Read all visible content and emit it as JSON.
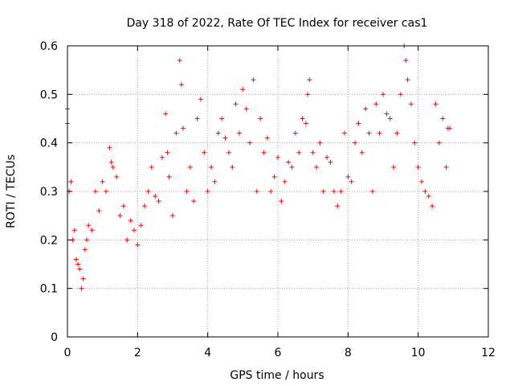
{
  "chart_data": {
    "type": "scatter",
    "title": "Day 318 of 2022, Rate Of TEC Index for receiver cas1",
    "xlabel": "GPS time / hours",
    "ylabel": "ROTI / TECUs",
    "xlim": [
      0,
      12
    ],
    "ylim": [
      0,
      0.6
    ],
    "xticks": [
      0,
      2,
      4,
      6,
      8,
      10,
      12
    ],
    "xtick_labels": [
      "0",
      "2",
      "4",
      "6",
      "8",
      "10",
      "12"
    ],
    "yticks": [
      0,
      0.1,
      0.2,
      0.3,
      0.4,
      0.5,
      0.6
    ],
    "ytick_labels": [
      "0",
      "0.1",
      "0.2",
      "0.3",
      "0.4",
      "0.5",
      "0.6"
    ],
    "grid": true,
    "marker": "plus",
    "color": "#ff0000",
    "series": [
      {
        "x": [
          0.0,
          0.0,
          0.05,
          0.1,
          0.15,
          0.2,
          0.25,
          0.3,
          0.35,
          0.4,
          0.45,
          0.5,
          0.55,
          0.6,
          0.7,
          0.8,
          0.9,
          1.0,
          1.1,
          1.2,
          1.25,
          1.3,
          1.4,
          1.5,
          1.6,
          1.7,
          1.8,
          1.9,
          2.0,
          2.1,
          2.2,
          2.3,
          2.4,
          2.5,
          2.6,
          2.7,
          2.8,
          2.85,
          2.9,
          3.0,
          3.1,
          3.2,
          3.25,
          3.3,
          3.4,
          3.5,
          3.6,
          3.7,
          3.8,
          3.9,
          4.0,
          4.1,
          4.2,
          4.3,
          4.4,
          4.5,
          4.6,
          4.7,
          4.8,
          4.9,
          5.0,
          5.1,
          5.2,
          5.3,
          5.4,
          5.5,
          5.6,
          5.7,
          5.8,
          5.9,
          6.0,
          6.1,
          6.2,
          6.3,
          6.4,
          6.5,
          6.6,
          6.7,
          6.8,
          6.85,
          6.9,
          7.0,
          7.1,
          7.2,
          7.3,
          7.4,
          7.5,
          7.6,
          7.7,
          7.8,
          7.9,
          8.0,
          8.1,
          8.2,
          8.3,
          8.4,
          8.5,
          8.6,
          8.7,
          8.8,
          8.9,
          9.0,
          9.1,
          9.2,
          9.3,
          9.4,
          9.5,
          9.6,
          9.65,
          9.7,
          9.8,
          9.9,
          10.0,
          10.1,
          10.2,
          10.3,
          10.4,
          10.5,
          10.6,
          10.7,
          10.8,
          10.85,
          10.9
        ],
        "y": [
          0.47,
          0.44,
          0.3,
          0.32,
          0.2,
          0.22,
          0.16,
          0.15,
          0.14,
          0.1,
          0.12,
          0.18,
          0.2,
          0.23,
          0.22,
          0.3,
          0.26,
          0.32,
          0.3,
          0.39,
          0.36,
          0.35,
          0.33,
          0.25,
          0.27,
          0.2,
          0.24,
          0.22,
          0.19,
          0.23,
          0.27,
          0.3,
          0.35,
          0.29,
          0.28,
          0.37,
          0.46,
          0.38,
          0.33,
          0.25,
          0.42,
          0.57,
          0.52,
          0.43,
          0.3,
          0.35,
          0.28,
          0.45,
          0.49,
          0.38,
          0.3,
          0.35,
          0.32,
          0.42,
          0.45,
          0.41,
          0.38,
          0.35,
          0.48,
          0.42,
          0.51,
          0.47,
          0.4,
          0.53,
          0.3,
          0.45,
          0.38,
          0.41,
          0.3,
          0.33,
          0.37,
          0.28,
          0.32,
          0.36,
          0.35,
          0.42,
          0.38,
          0.45,
          0.44,
          0.5,
          0.53,
          0.38,
          0.35,
          0.4,
          0.3,
          0.37,
          0.36,
          0.3,
          0.27,
          0.3,
          0.42,
          0.33,
          0.32,
          0.4,
          0.44,
          0.38,
          0.47,
          0.42,
          0.3,
          0.48,
          0.42,
          0.5,
          0.46,
          0.45,
          0.35,
          0.42,
          0.5,
          0.6,
          0.57,
          0.53,
          0.48,
          0.4,
          0.35,
          0.32,
          0.3,
          0.29,
          0.27,
          0.48,
          0.4,
          0.45,
          0.35,
          0.43,
          0.43
        ]
      }
    ]
  }
}
